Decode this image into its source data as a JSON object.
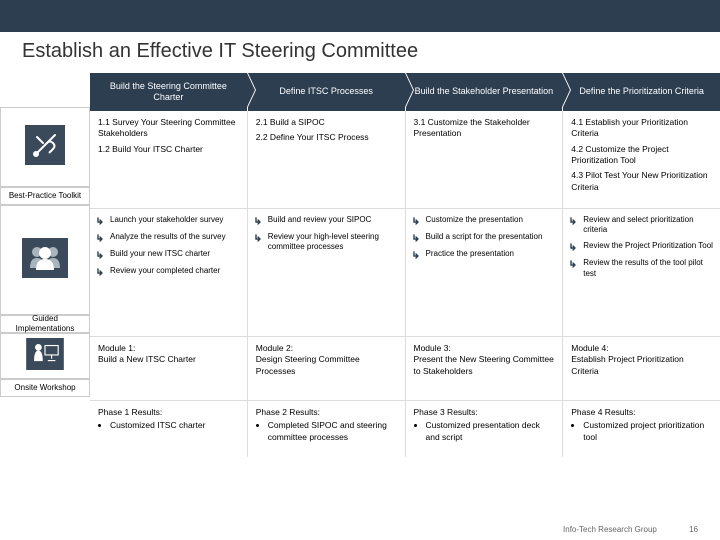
{
  "title": "Establish an Effective IT Steering Committee",
  "phases": [
    {
      "header": "Build the Steering Committee Charter"
    },
    {
      "header": "Define ITSC Processes"
    },
    {
      "header": "Build the Stakeholder Presentation"
    },
    {
      "header": "Define the Prioritization Criteria"
    }
  ],
  "steps": {
    "p1": [
      "1.1 Survey Your Steering Committee Stakeholders",
      "1.2 Build Your ITSC Charter"
    ],
    "p2": [
      "2.1 Build a SIPOC",
      "2.2 Define Your ITSC Process"
    ],
    "p3": [
      "3.1 Customize the Stakeholder Presentation"
    ],
    "p4": [
      "4.1 Establish your Prioritization Criteria",
      "4.2 Customize the Project Prioritization Tool",
      "4.3 Pilot Test Your New Prioritization Criteria"
    ]
  },
  "leftLabels": {
    "toolkit": "Best-Practice Toolkit",
    "guided": "Guided Implementations",
    "workshop": "Onsite Workshop"
  },
  "tasks": {
    "p1": [
      "Launch your stakeholder survey",
      "Analyze the results of the survey",
      "Build your new ITSC charter",
      "Review your completed charter"
    ],
    "p2": [
      "Build and review your SIPOC",
      "Review your high-level steering committee processes"
    ],
    "p3": [
      "Customize the presentation",
      "Build a script for the presentation",
      "Practice the presentation"
    ],
    "p4": [
      "Review and select prioritization criteria",
      "Review the Project Prioritization Tool",
      "Review the results of the tool pilot test"
    ]
  },
  "modules": {
    "p1": {
      "label": "Module 1:",
      "desc": "Build a New ITSC Charter"
    },
    "p2": {
      "label": "Module 2:",
      "desc": "Design Steering Committee Processes"
    },
    "p3": {
      "label": "Module 3:",
      "desc": "Present the New Steering Committee to Stakeholders"
    },
    "p4": {
      "label": "Module 4:",
      "desc": "Establish Project Prioritization Criteria"
    }
  },
  "results": {
    "p1": {
      "label": "Phase 1 Results:",
      "items": [
        "Customized ITSC charter"
      ]
    },
    "p2": {
      "label": "Phase 2 Results:",
      "items": [
        "Completed SIPOC and steering committee processes"
      ]
    },
    "p3": {
      "label": "Phase 3 Results:",
      "items": [
        "Customized presentation deck and script"
      ]
    },
    "p4": {
      "label": "Phase 4 Results:",
      "items": [
        "Customized project prioritization tool"
      ]
    }
  },
  "footer": {
    "org": "Info-Tech Research Group",
    "page": "16"
  },
  "colors": {
    "brand": "#2c3e50",
    "iconBg": "#3a4a5a"
  }
}
